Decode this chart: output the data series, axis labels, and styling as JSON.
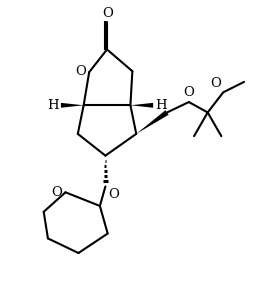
{
  "bg_color": "#ffffff",
  "line_color": "#000000",
  "lw": 1.5,
  "figsize": [
    2.79,
    2.95
  ],
  "dpi": 100,
  "fs": 9.5,
  "xlim": [
    -2.8,
    4.8
  ],
  "ylim": [
    -5.8,
    3.2
  ]
}
